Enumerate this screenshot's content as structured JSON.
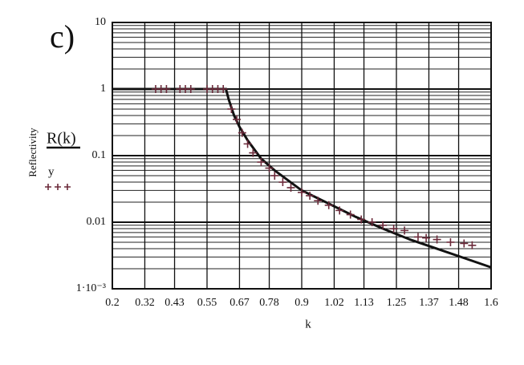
{
  "chart_data": {
    "type": "line",
    "panel_label": "c)",
    "x_label": "k",
    "y_label": "Reflectivity",
    "log_y": true,
    "grid": true,
    "minor_grid": true,
    "xlim": [
      0.2,
      1.6
    ],
    "xticks": [
      0.2,
      0.32,
      0.43,
      0.55,
      0.67,
      0.78,
      0.9,
      1.02,
      1.13,
      1.25,
      1.37,
      1.48,
      1.6
    ],
    "ylim": [
      0.001,
      10
    ],
    "yticks": [
      {
        "value": 0.001,
        "label": "1·10⁻³"
      },
      0.01,
      0.1,
      1,
      10
    ],
    "series": [
      {
        "name": "R(k)",
        "style": "line",
        "color": "#111111",
        "x": [
          0.2,
          0.3,
          0.4,
          0.5,
          0.6,
          0.62,
          0.63,
          0.65,
          0.67,
          0.7,
          0.75,
          0.8,
          0.9,
          1.0,
          1.1,
          1.2,
          1.3,
          1.4,
          1.5,
          1.6
        ],
        "values": [
          1,
          1,
          1,
          1,
          1,
          1,
          0.7,
          0.4,
          0.27,
          0.17,
          0.09,
          0.06,
          0.03,
          0.019,
          0.012,
          0.008,
          0.0055,
          0.004,
          0.0029,
          0.0021
        ]
      },
      {
        "name": "y",
        "style": "plus",
        "color": "#6b2a3a",
        "x": [
          0.36,
          0.38,
          0.4,
          0.45,
          0.47,
          0.49,
          0.55,
          0.57,
          0.59,
          0.61,
          0.64,
          0.66,
          0.68,
          0.7,
          0.72,
          0.75,
          0.78,
          0.8,
          0.83,
          0.86,
          0.9,
          0.93,
          0.96,
          1.0,
          1.04,
          1.08,
          1.12,
          1.16,
          1.2,
          1.24,
          1.28,
          1.33,
          1.36,
          1.4,
          1.45,
          1.5,
          1.53
        ],
        "values": [
          1,
          1,
          1,
          1,
          1,
          1,
          1,
          1,
          1,
          1,
          0.5,
          0.35,
          0.22,
          0.15,
          0.11,
          0.08,
          0.065,
          0.05,
          0.04,
          0.033,
          0.028,
          0.025,
          0.021,
          0.018,
          0.015,
          0.013,
          0.011,
          0.01,
          0.009,
          0.008,
          0.0075,
          0.006,
          0.0058,
          0.0055,
          0.005,
          0.0048,
          0.0045
        ]
      }
    ]
  }
}
